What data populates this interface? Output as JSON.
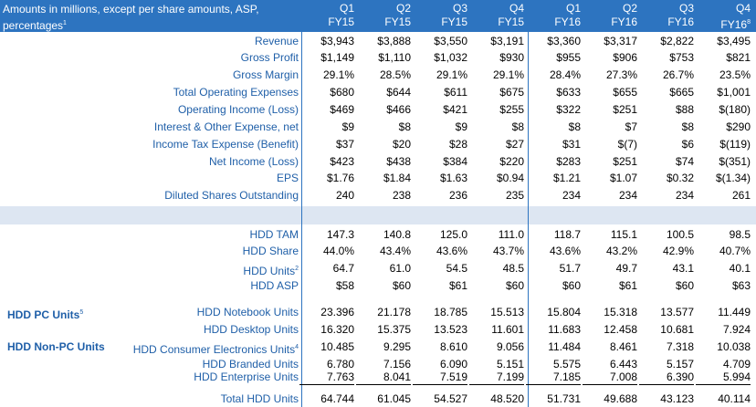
{
  "note": "Amounts in millions, except per share amounts, ASP, percentages",
  "note_sup": "1",
  "columns": [
    {
      "q": "Q1",
      "fy": "FY15",
      "sup": ""
    },
    {
      "q": "Q2",
      "fy": "FY15",
      "sup": ""
    },
    {
      "q": "Q3",
      "fy": "FY15",
      "sup": ""
    },
    {
      "q": "Q4",
      "fy": "FY15",
      "sup": ""
    },
    {
      "q": "Q1",
      "fy": "FY16",
      "sup": ""
    },
    {
      "q": "Q2",
      "fy": "FY16",
      "sup": ""
    },
    {
      "q": "Q3",
      "fy": "FY16",
      "sup": ""
    },
    {
      "q": "Q4",
      "fy": "FY16",
      "sup": "8"
    }
  ],
  "financials": [
    {
      "label": "Revenue",
      "sup": "",
      "values": [
        "$3,943",
        "$3,888",
        "$3,550",
        "$3,191",
        "$3,360",
        "$3,317",
        "$2,822",
        "$3,495"
      ]
    },
    {
      "label": "Gross Profit",
      "sup": "",
      "values": [
        "$1,149",
        "$1,110",
        "$1,032",
        "$930",
        "$955",
        "$906",
        "$753",
        "$821"
      ]
    },
    {
      "label": "Gross Margin",
      "sup": "",
      "values": [
        "29.1%",
        "28.5%",
        "29.1%",
        "29.1%",
        "28.4%",
        "27.3%",
        "26.7%",
        "23.5%"
      ]
    },
    {
      "label": "Total Operating Expenses",
      "sup": "",
      "values": [
        "$680",
        "$644",
        "$611",
        "$675",
        "$633",
        "$655",
        "$665",
        "$1,001"
      ]
    },
    {
      "label": "Operating Income (Loss)",
      "sup": "",
      "values": [
        "$469",
        "$466",
        "$421",
        "$255",
        "$322",
        "$251",
        "$88",
        "$(180)"
      ]
    },
    {
      "label": "Interest & Other Expense, net",
      "sup": "",
      "values": [
        "$9",
        "$8",
        "$9",
        "$8",
        "$8",
        "$7",
        "$8",
        "$290"
      ]
    },
    {
      "label": "Income Tax Expense (Benefit)",
      "sup": "",
      "values": [
        "$37",
        "$20",
        "$28",
        "$27",
        "$31",
        "$(7)",
        "$6",
        "$(119)"
      ]
    },
    {
      "label": "Net Income (Loss)",
      "sup": "",
      "values": [
        "$423",
        "$438",
        "$384",
        "$220",
        "$283",
        "$251",
        "$74",
        "$(351)"
      ]
    },
    {
      "label": "EPS",
      "sup": "",
      "values": [
        "$1.76",
        "$1.84",
        "$1.63",
        "$0.94",
        "$1.21",
        "$1.07",
        "$0.32",
        "$(1.34)"
      ]
    },
    {
      "label": "Diluted Shares Outstanding",
      "sup": "",
      "values": [
        "240",
        "238",
        "236",
        "235",
        "234",
        "234",
        "234",
        "261"
      ]
    }
  ],
  "hdd": [
    {
      "label": "HDD TAM",
      "sup": "",
      "values": [
        "147.3",
        "140.8",
        "125.0",
        "111.0",
        "118.7",
        "115.1",
        "100.5",
        "98.5"
      ]
    },
    {
      "label": "HDD Share",
      "sup": "",
      "values": [
        "44.0%",
        "43.4%",
        "43.6%",
        "43.7%",
        "43.6%",
        "43.2%",
        "42.9%",
        "40.7%"
      ]
    },
    {
      "label": "HDD Units",
      "sup": "2",
      "values": [
        "64.7",
        "61.0",
        "54.5",
        "48.5",
        "51.7",
        "49.7",
        "43.1",
        "40.1"
      ]
    },
    {
      "label": "HDD ASP",
      "sup": "",
      "values": [
        "$58",
        "$60",
        "$61",
        "$60",
        "$60",
        "$61",
        "$60",
        "$63"
      ]
    }
  ],
  "group_pc": {
    "label": "HDD PC Units",
    "sup": "5"
  },
  "group_nonpc": {
    "label": "HDD Non-PC Units"
  },
  "units": [
    {
      "label": "HDD Notebook Units",
      "sup": "",
      "values": [
        "23.396",
        "21.178",
        "18.785",
        "15.513",
        "15.804",
        "15.318",
        "13.577",
        "11.449"
      ]
    },
    {
      "label": "HDD Desktop Units",
      "sup": "",
      "values": [
        "16.320",
        "15.375",
        "13.523",
        "11.601",
        "11.683",
        "12.458",
        "10.681",
        "7.924"
      ]
    },
    {
      "label": "HDD Consumer Electronics Units",
      "sup": "4",
      "values": [
        "10.485",
        "9.295",
        "8.610",
        "9.056",
        "11.484",
        "8.461",
        "7.318",
        "10.038"
      ]
    },
    {
      "label": "HDD Branded Units",
      "sup": "",
      "values": [
        "6.780",
        "7.156",
        "6.090",
        "5.151",
        "5.575",
        "6.443",
        "5.157",
        "4.709"
      ]
    },
    {
      "label": "HDD Enterprise Units",
      "sup": "",
      "values": [
        "7.763",
        "8.041",
        "7.519",
        "7.199",
        "7.185",
        "7.008",
        "6.390",
        "5.994"
      ]
    },
    {
      "label": "Total HDD Units",
      "sup": "",
      "values": [
        "64.744",
        "61.045",
        "54.527",
        "48.520",
        "51.731",
        "49.688",
        "43.123",
        "40.114"
      ]
    }
  ]
}
